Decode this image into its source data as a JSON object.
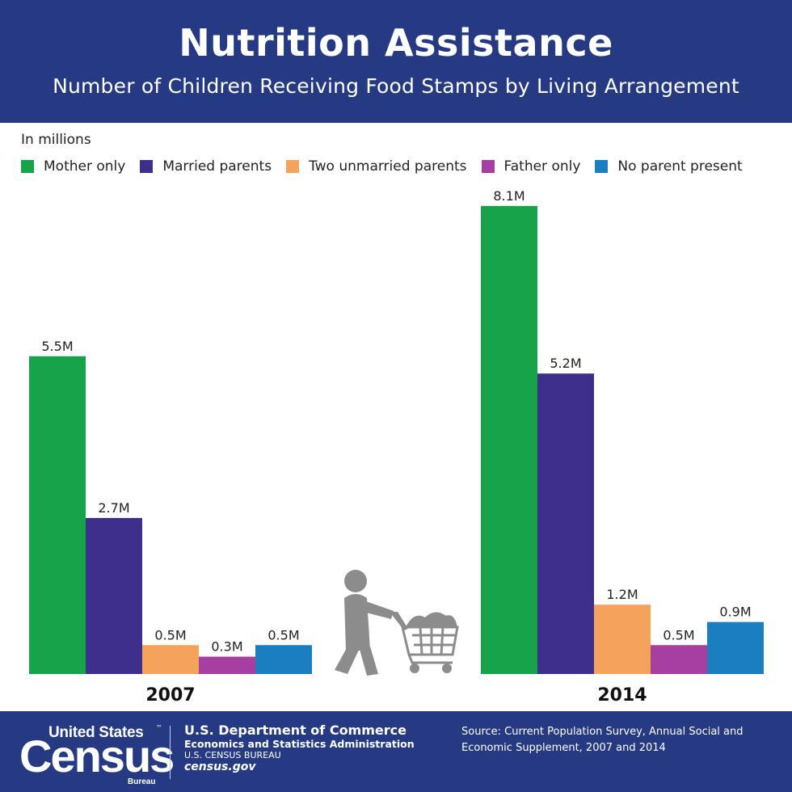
{
  "header": {
    "title": "Nutrition Assistance",
    "subtitle": "Number of Children Receiving Food Stamps by Living Arrangement"
  },
  "units_label": "In millions",
  "legend": [
    {
      "label": "Mother only",
      "color": "#16a34a"
    },
    {
      "label": "Married parents",
      "color": "#3f2f8c"
    },
    {
      "label": "Two unmarried parents",
      "color": "#f5a25d"
    },
    {
      "label": "Father only",
      "color": "#a63fa0"
    },
    {
      "label": "No parent present",
      "color": "#1a7ec0"
    }
  ],
  "chart_data": {
    "type": "bar",
    "title": "Number of Children Receiving Food Stamps by Living Arrangement",
    "xlabel": "",
    "ylabel": "",
    "unit": "In millions",
    "categories": [
      "2007",
      "2014"
    ],
    "series": [
      {
        "name": "Mother only",
        "values": [
          5.5,
          8.1
        ],
        "labels": [
          "5.5M",
          "8.1M"
        ],
        "color": "#16a34a"
      },
      {
        "name": "Married parents",
        "values": [
          2.7,
          5.2
        ],
        "labels": [
          "2.7M",
          "5.2M"
        ],
        "color": "#3f2f8c"
      },
      {
        "name": "Two unmarried parents",
        "values": [
          0.5,
          1.2
        ],
        "labels": [
          "0.5M",
          "1.2M"
        ],
        "color": "#f5a25d"
      },
      {
        "name": "Father only",
        "values": [
          0.3,
          0.5
        ],
        "labels": [
          "0.3M",
          "0.5M"
        ],
        "color": "#a63fa0"
      },
      {
        "name": "No parent present",
        "values": [
          0.5,
          0.9
        ],
        "labels": [
          "0.5M",
          "0.9M"
        ],
        "color": "#1a7ec0"
      }
    ],
    "grid": false,
    "legend_position": "top-left"
  },
  "illustration_icon": "person-pushing-shopping-cart-icon",
  "footer": {
    "logo": {
      "top": "United States",
      "tm": "™",
      "main": "Census",
      "bureau": "Bureau"
    },
    "dept_name": "U.S. Department of Commerce",
    "dept_sub": "Economics and Statistics Administration",
    "dept_bureau": "U.S. CENSUS BUREAU",
    "url": "census.gov",
    "source": "Source: Current Population Survey, Annual Social and Economic Supplement, 2007 and 2014"
  }
}
